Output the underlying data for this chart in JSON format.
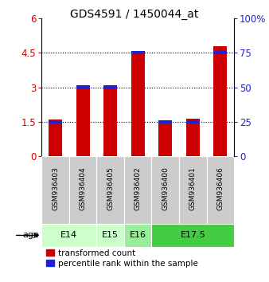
{
  "title": "GDS4591 / 1450044_at",
  "samples": [
    "GSM936403",
    "GSM936404",
    "GSM936405",
    "GSM936402",
    "GSM936400",
    "GSM936401",
    "GSM936406"
  ],
  "transformed_counts": [
    1.6,
    3.0,
    3.0,
    4.5,
    1.5,
    1.65,
    4.8
  ],
  "percentile_ranks": [
    25,
    50,
    50,
    75,
    25,
    25,
    75
  ],
  "bar_color_red": "#cc0000",
  "bar_color_blue": "#2222cc",
  "left_yticks": [
    0,
    1.5,
    3.0,
    4.5,
    6
  ],
  "left_ylim": [
    0,
    6
  ],
  "right_ytick_vals": [
    0,
    25,
    50,
    75,
    100
  ],
  "right_ytick_labels": [
    "0",
    "25",
    "50",
    "75",
    "100%"
  ],
  "right_ylim": [
    0,
    100
  ],
  "age_groups": [
    {
      "label": "E14",
      "start": 0,
      "end": 2,
      "color": "#ccffcc"
    },
    {
      "label": "E15",
      "start": 2,
      "end": 3,
      "color": "#ccffcc"
    },
    {
      "label": "E16",
      "start": 3,
      "end": 4,
      "color": "#99ee99"
    },
    {
      "label": "E17.5",
      "start": 4,
      "end": 7,
      "color": "#44cc44"
    }
  ],
  "legend_red_label": "transformed count",
  "legend_blue_label": "percentile rank within the sample",
  "age_label": "age",
  "background_color": "#ffffff",
  "sample_box_color": "#cccccc",
  "bar_width": 0.5,
  "blue_bar_height": 0.15
}
